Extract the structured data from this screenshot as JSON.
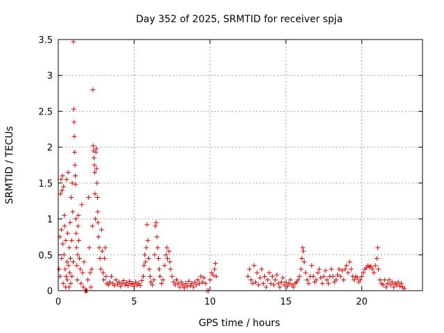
{
  "chart_data": {
    "type": "scatter",
    "title": "Day 352 of 2025, SRMTID for receiver spja",
    "xlabel": "GPS time / hours",
    "ylabel": "SRMTID / TECUs",
    "xlim": [
      0,
      24
    ],
    "ylim": [
      0,
      3.5
    ],
    "xticks": [
      0,
      5,
      10,
      15,
      20
    ],
    "yticks": [
      0,
      0.5,
      1,
      1.5,
      2,
      2.5,
      3,
      3.5
    ],
    "xtick_labels": [
      "0",
      "5",
      "10",
      "15",
      "20"
    ],
    "ytick_labels": [
      "0",
      "0.5",
      "1",
      "1.5",
      "2",
      "2.5",
      "3",
      "3.5"
    ],
    "grid": true,
    "marker": "+",
    "color": "#e00000",
    "series": [
      {
        "name": "SRMTID",
        "points": [
          [
            0.05,
            0.3
          ],
          [
            0.1,
            0.75
          ],
          [
            0.12,
            0.2
          ],
          [
            0.15,
            1.35
          ],
          [
            0.18,
            1.55
          ],
          [
            0.2,
            0.85
          ],
          [
            0.22,
            0.45
          ],
          [
            0.25,
            1.4
          ],
          [
            0.28,
            1.6
          ],
          [
            0.3,
            0.65
          ],
          [
            0.32,
            0.1
          ],
          [
            0.35,
            1.45
          ],
          [
            0.38,
            0.5
          ],
          [
            0.4,
            1.05
          ],
          [
            0.42,
            0.9
          ],
          [
            0.45,
            0.3
          ],
          [
            0.48,
            0.05
          ],
          [
            0.5,
            0.7
          ],
          [
            0.52,
            0.2
          ],
          [
            0.55,
            1.55
          ],
          [
            0.58,
            0.4
          ],
          [
            0.6,
            0.15
          ],
          [
            0.62,
            0.8
          ],
          [
            0.65,
            1.65
          ],
          [
            0.68,
            0.35
          ],
          [
            0.7,
            0.05
          ],
          [
            0.72,
            0.6
          ],
          [
            0.75,
            0.25
          ],
          [
            0.78,
            0.95
          ],
          [
            0.8,
            0.45
          ],
          [
            0.82,
            0.1
          ],
          [
            0.85,
            1.3
          ],
          [
            0.88,
            0.7
          ],
          [
            0.9,
            0.2
          ],
          [
            0.92,
            1.5
          ],
          [
            0.95,
            1.1
          ],
          [
            0.98,
            0.4
          ],
          [
            1.0,
            3.47
          ],
          [
            1.02,
            2.53
          ],
          [
            1.04,
            2.35
          ],
          [
            1.06,
            2.15
          ],
          [
            1.08,
            1.93
          ],
          [
            1.1,
            1.75
          ],
          [
            1.12,
            1.6
          ],
          [
            1.14,
            1.48
          ],
          [
            1.16,
            1.0
          ],
          [
            1.18,
            0.8
          ],
          [
            1.2,
            0.6
          ],
          [
            1.22,
            0.35
          ],
          [
            1.25,
            0.15
          ],
          [
            1.28,
            0.5
          ],
          [
            1.3,
            0.9
          ],
          [
            1.32,
            1.05
          ],
          [
            1.35,
            0.7
          ],
          [
            1.4,
            0.45
          ],
          [
            1.45,
            0.3
          ],
          [
            1.5,
            0.1
          ],
          [
            1.55,
            1.2
          ],
          [
            1.6,
            0.25
          ],
          [
            1.65,
            0.05
          ],
          [
            1.7,
            0.4
          ],
          [
            1.75,
            0.0
          ],
          [
            1.8,
            0.0
          ],
          [
            1.85,
            0.0
          ],
          [
            1.9,
            0.0
          ],
          [
            1.95,
            0.15
          ],
          [
            2.0,
            1.3
          ],
          [
            2.05,
            0.6
          ],
          [
            2.1,
            0.25
          ],
          [
            2.15,
            0.05
          ],
          [
            2.2,
            0.3
          ],
          [
            2.25,
            0.9
          ],
          [
            2.28,
            2.8
          ],
          [
            2.3,
            2.02
          ],
          [
            2.32,
            1.95
          ],
          [
            2.35,
            1.85
          ],
          [
            2.38,
            1.75
          ],
          [
            2.4,
            1.65
          ],
          [
            2.42,
            1.35
          ],
          [
            2.45,
            1.0
          ],
          [
            2.48,
            1.93
          ],
          [
            2.5,
            1.98
          ],
          [
            2.52,
            1.7
          ],
          [
            2.55,
            1.5
          ],
          [
            2.58,
            1.3
          ],
          [
            2.6,
            1.1
          ],
          [
            2.62,
            0.95
          ],
          [
            2.65,
            0.75
          ],
          [
            2.7,
            0.6
          ],
          [
            2.75,
            0.45
          ],
          [
            2.8,
            0.3
          ],
          [
            2.85,
            0.85
          ],
          [
            2.9,
            0.55
          ],
          [
            2.95,
            0.25
          ],
          [
            3.0,
            0.15
          ],
          [
            3.05,
            0.45
          ],
          [
            3.1,
            0.6
          ],
          [
            3.15,
            0.2
          ],
          [
            3.2,
            0.1
          ],
          [
            3.3,
            0.08
          ],
          [
            3.4,
            0.12
          ],
          [
            3.5,
            0.2
          ],
          [
            3.6,
            0.1
          ],
          [
            3.7,
            0.07
          ],
          [
            3.8,
            0.15
          ],
          [
            3.9,
            0.09
          ],
          [
            4.0,
            0.12
          ],
          [
            4.1,
            0.06
          ],
          [
            4.2,
            0.1
          ],
          [
            4.3,
            0.14
          ],
          [
            4.4,
            0.08
          ],
          [
            4.5,
            0.11
          ],
          [
            4.6,
            0.07
          ],
          [
            4.7,
            0.13
          ],
          [
            4.8,
            0.09
          ],
          [
            4.9,
            0.1
          ],
          [
            5.0,
            0.06
          ],
          [
            5.1,
            0.12
          ],
          [
            5.2,
            0.08
          ],
          [
            5.3,
            0.1
          ],
          [
            5.4,
            0.07
          ],
          [
            5.5,
            0.14
          ],
          [
            5.6,
            0.2
          ],
          [
            5.65,
            0.35
          ],
          [
            5.7,
            0.5
          ],
          [
            5.75,
            0.4
          ],
          [
            5.8,
            0.6
          ],
          [
            5.85,
            0.92
          ],
          [
            5.9,
            0.7
          ],
          [
            5.95,
            0.45
          ],
          [
            6.0,
            0.3
          ],
          [
            6.05,
            0.2
          ],
          [
            6.1,
            0.12
          ],
          [
            6.2,
            0.08
          ],
          [
            6.3,
            0.15
          ],
          [
            6.35,
            0.5
          ],
          [
            6.4,
            0.9
          ],
          [
            6.45,
            0.95
          ],
          [
            6.5,
            0.75
          ],
          [
            6.55,
            0.6
          ],
          [
            6.6,
            0.45
          ],
          [
            6.65,
            0.3
          ],
          [
            6.7,
            0.2
          ],
          [
            6.8,
            0.1
          ],
          [
            6.9,
            0.15
          ],
          [
            7.0,
            0.35
          ],
          [
            7.1,
            0.5
          ],
          [
            7.15,
            0.6
          ],
          [
            7.2,
            0.45
          ],
          [
            7.3,
            0.55
          ],
          [
            7.35,
            0.4
          ],
          [
            7.4,
            0.3
          ],
          [
            7.5,
            0.2
          ],
          [
            7.6,
            0.12
          ],
          [
            7.7,
            0.08
          ],
          [
            7.8,
            0.15
          ],
          [
            7.9,
            0.1
          ],
          [
            8.0,
            0.05
          ],
          [
            8.1,
            0.12
          ],
          [
            8.2,
            0.08
          ],
          [
            8.3,
            0.04
          ],
          [
            8.4,
            0.1
          ],
          [
            8.5,
            0.06
          ],
          [
            8.6,
            0.13
          ],
          [
            8.7,
            0.07
          ],
          [
            8.8,
            0.1
          ],
          [
            8.9,
            0.05
          ],
          [
            9.0,
            0.12
          ],
          [
            9.1,
            0.08
          ],
          [
            9.2,
            0.15
          ],
          [
            9.3,
            0.1
          ],
          [
            9.4,
            0.2
          ],
          [
            9.5,
            0.12
          ],
          [
            9.6,
            0.18
          ],
          [
            9.7,
            0.1
          ],
          [
            9.8,
            0.0
          ],
          [
            9.9,
            0.0
          ],
          [
            10.0,
            0.15
          ],
          [
            10.1,
            0.25
          ],
          [
            10.2,
            0.22
          ],
          [
            10.3,
            0.3
          ],
          [
            10.35,
            0.38
          ],
          [
            10.4,
            0.2
          ],
          [
            12.5,
            0.2
          ],
          [
            12.6,
            0.3
          ],
          [
            12.7,
            0.15
          ],
          [
            12.8,
            0.1
          ],
          [
            12.9,
            0.35
          ],
          [
            13.0,
            0.12
          ],
          [
            13.1,
            0.25
          ],
          [
            13.2,
            0.08
          ],
          [
            13.3,
            0.18
          ],
          [
            13.4,
            0.3
          ],
          [
            13.5,
            0.1
          ],
          [
            13.6,
            0.2
          ],
          [
            13.7,
            0.05
          ],
          [
            13.8,
            0.15
          ],
          [
            13.9,
            0.25
          ],
          [
            14.0,
            0.1
          ],
          [
            14.1,
            0.2
          ],
          [
            14.2,
            0.08
          ],
          [
            14.3,
            0.15
          ],
          [
            14.4,
            0.22
          ],
          [
            14.5,
            0.1
          ],
          [
            14.6,
            0.05
          ],
          [
            14.7,
            0.12
          ],
          [
            14.8,
            0.18
          ],
          [
            14.9,
            0.08
          ],
          [
            15.0,
            0.12
          ],
          [
            15.1,
            0.06
          ],
          [
            15.2,
            0.1
          ],
          [
            15.3,
            0.15
          ],
          [
            15.4,
            0.08
          ],
          [
            15.5,
            0.05
          ],
          [
            15.6,
            0.1
          ],
          [
            15.7,
            0.12
          ],
          [
            15.8,
            0.15
          ],
          [
            15.9,
            0.2
          ],
          [
            16.0,
            0.3
          ],
          [
            16.05,
            0.45
          ],
          [
            16.1,
            0.6
          ],
          [
            16.15,
            0.55
          ],
          [
            16.2,
            0.4
          ],
          [
            16.3,
            0.25
          ],
          [
            16.4,
            0.15
          ],
          [
            16.5,
            0.1
          ],
          [
            16.6,
            0.2
          ],
          [
            16.7,
            0.35
          ],
          [
            16.8,
            0.2
          ],
          [
            16.9,
            0.12
          ],
          [
            17.0,
            0.15
          ],
          [
            17.1,
            0.25
          ],
          [
            17.2,
            0.3
          ],
          [
            17.3,
            0.18
          ],
          [
            17.4,
            0.1
          ],
          [
            17.5,
            0.2
          ],
          [
            17.6,
            0.28
          ],
          [
            17.7,
            0.15
          ],
          [
            17.8,
            0.1
          ],
          [
            17.9,
            0.2
          ],
          [
            18.0,
            0.3
          ],
          [
            18.1,
            0.2
          ],
          [
            18.2,
            0.12
          ],
          [
            18.3,
            0.15
          ],
          [
            18.4,
            0.22
          ],
          [
            18.5,
            0.3
          ],
          [
            18.6,
            0.2
          ],
          [
            18.7,
            0.28
          ],
          [
            18.8,
            0.15
          ],
          [
            18.9,
            0.3
          ],
          [
            19.0,
            0.35
          ],
          [
            19.1,
            0.25
          ],
          [
            19.2,
            0.4
          ],
          [
            19.3,
            0.3
          ],
          [
            19.4,
            0.2
          ],
          [
            19.5,
            0.15
          ],
          [
            19.6,
            0.2
          ],
          [
            19.7,
            0.18
          ],
          [
            19.8,
            0.12
          ],
          [
            19.9,
            0.15
          ],
          [
            20.0,
            0.2
          ],
          [
            20.1,
            0.25
          ],
          [
            20.2,
            0.3
          ],
          [
            20.3,
            0.32
          ],
          [
            20.4,
            0.35
          ],
          [
            20.5,
            0.33
          ],
          [
            20.6,
            0.34
          ],
          [
            20.7,
            0.3
          ],
          [
            20.8,
            0.25
          ],
          [
            20.9,
            0.35
          ],
          [
            21.0,
            0.45
          ],
          [
            21.05,
            0.6
          ],
          [
            21.1,
            0.3
          ],
          [
            21.2,
            0.15
          ],
          [
            21.3,
            0.1
          ],
          [
            21.4,
            0.08
          ],
          [
            21.5,
            0.15
          ],
          [
            21.6,
            0.05
          ],
          [
            21.7,
            0.1
          ],
          [
            21.8,
            0.15
          ],
          [
            21.9,
            0.08
          ],
          [
            22.0,
            0.12
          ],
          [
            22.1,
            0.05
          ],
          [
            22.2,
            0.1
          ],
          [
            22.3,
            0.08
          ],
          [
            22.4,
            0.12
          ],
          [
            22.5,
            0.06
          ],
          [
            22.6,
            0.1
          ],
          [
            22.7,
            0.05
          ],
          [
            22.8,
            0.03
          ]
        ]
      }
    ]
  }
}
